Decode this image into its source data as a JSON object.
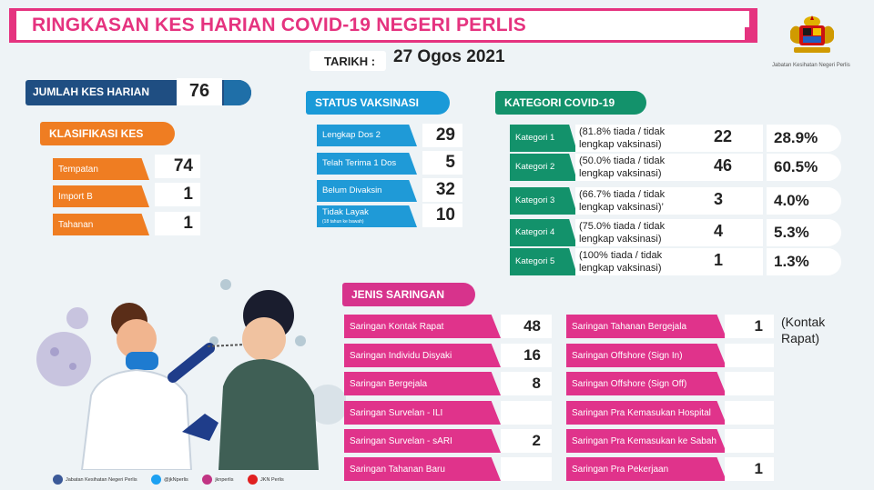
{
  "header": {
    "title": "RINGKASAN KES HARIAN COVID-19 NEGERI PERLIS",
    "date_label": "TARIKH :",
    "date_value": "27 Ogos 2021",
    "agency": "Jabatan Kesihatan Negeri Perlis"
  },
  "jumlah": {
    "label": "JUMLAH KES HARIAN",
    "value": "76"
  },
  "klasifikasi": {
    "label": "KLASIFIKASI KES",
    "rows": [
      {
        "label": "Tempatan",
        "value": "74"
      },
      {
        "label": "Import B",
        "value": "1"
      },
      {
        "label": "Tahanan",
        "value": "1"
      }
    ]
  },
  "vaksinasi": {
    "label": "STATUS VAKSINASI",
    "rows": [
      {
        "label": "Lengkap Dos 2",
        "sub": "",
        "value": "29"
      },
      {
        "label": "Telah Terima 1 Dos",
        "sub": "",
        "value": "5"
      },
      {
        "label": "Belum Divaksin",
        "sub": "",
        "value": "32"
      },
      {
        "label": "Tidak Layak",
        "sub": "(18 tahun ke bawah)",
        "value": "10"
      }
    ]
  },
  "kategori": {
    "label": "KATEGORI COVID-19",
    "rows": [
      {
        "label": "Kategori 1",
        "note": "(81.8% tiada / tidak lengkap vaksinasi)",
        "count": "22",
        "pct": "28.9%"
      },
      {
        "label": "Kategori 2",
        "note": "(50.0% tiada / tidak lengkap vaksinasi)",
        "count": "46",
        "pct": "60.5%"
      },
      {
        "label": "Kategori 3",
        "note": "(66.7% tiada / tidak lengkap vaksinasi)’",
        "count": "3",
        "pct": "4.0%"
      },
      {
        "label": "Kategori 4",
        "note": "(75.0% tiada / tidak lengkap vaksinasi)",
        "count": "4",
        "pct": "5.3%"
      },
      {
        "label": "Kategori 5",
        "note": "(100% tiada / tidak lengkap vaksinasi)",
        "count": "1",
        "pct": "1.3%"
      }
    ]
  },
  "saringan": {
    "label": "JENIS SARINGAN",
    "left": [
      {
        "label": "Saringan Kontak Rapat",
        "value": "48"
      },
      {
        "label": "Saringan Individu Disyaki",
        "value": "16"
      },
      {
        "label": "Saringan Bergejala",
        "value": "8"
      },
      {
        "label": "Saringan Survelan - ILI",
        "value": ""
      },
      {
        "label": "Saringan Survelan - sARI",
        "value": "2"
      },
      {
        "label": "Saringan Tahanan Baru",
        "value": ""
      }
    ],
    "right": [
      {
        "label": "Saringan Tahanan Bergejala",
        "value": "1"
      },
      {
        "label": "Saringan Offshore (Sign In)",
        "value": ""
      },
      {
        "label": "Saringan Offshore (Sign Off)",
        "value": ""
      },
      {
        "label": "Saringan Pra Kemasukan Hospital",
        "value": ""
      },
      {
        "label": "Saringan Pra Kemasukan ke Sabah",
        "value": ""
      },
      {
        "label": "Saringan Pra Pekerjaan",
        "value": "1"
      }
    ],
    "note_line1": "(Kontak",
    "note_line2": "Rapat)"
  },
  "footer": {
    "facebook": "Jabatan Kesihatan Negeri Perlis",
    "twitter": "@jkNperlis",
    "instagram": "jknperlis",
    "youtube": "JKN Perlis"
  },
  "colors": {
    "magenta": "#e5337f",
    "navy": "#1f4e82",
    "orange": "#ef7d22",
    "blue": "#1f9ad7",
    "green": "#13926b"
  }
}
